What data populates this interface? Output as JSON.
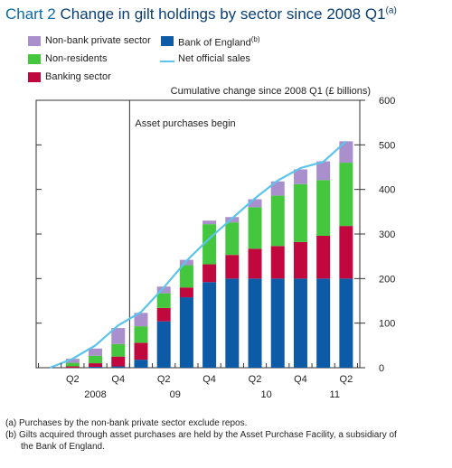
{
  "header": {
    "chart_number": "Chart 2",
    "title": "Change in gilt holdings by sector since 2008 Q1",
    "title_note": "(a)"
  },
  "legend": {
    "nonbank": "Non-bank private sector",
    "nonres": "Non-residents",
    "banking": "Banking sector",
    "boe": "Bank of England",
    "boe_note": "(b)",
    "sales": "Net official sales"
  },
  "colors": {
    "nonbank": "#a98fcc",
    "nonres": "#44c73f",
    "banking": "#c0083f",
    "boe": "#0d5aa7",
    "sales": "#5bc4ee",
    "title_number": "#0b6aa8",
    "title_text": "#0b3f73"
  },
  "chart_data": {
    "type": "bar",
    "stacked": true,
    "ylabel": "Cumulative change since 2008 Q1 (£ billions)",
    "ylim": [
      0,
      600
    ],
    "yticks": [
      0,
      100,
      200,
      300,
      400,
      500,
      600
    ],
    "grid": false,
    "periods": [
      "2008 Q1",
      "2008 Q2",
      "2008 Q3",
      "2008 Q4",
      "2009 Q1",
      "2009 Q2",
      "2009 Q3",
      "2009 Q4",
      "2010 Q1",
      "2010 Q2",
      "2010 Q3",
      "2010 Q4",
      "2011 Q1",
      "2011 Q2"
    ],
    "x_tick_labels": [
      "Q2",
      "Q4",
      "Q2",
      "Q4",
      "Q2",
      "Q4",
      "Q2"
    ],
    "x_tick_positions": [
      1,
      3,
      5,
      7,
      9,
      11,
      13
    ],
    "year_labels": [
      "2008",
      "09",
      "10",
      "11"
    ],
    "year_label_positions": [
      2,
      5.5,
      9.5,
      12.5
    ],
    "series": [
      {
        "name": "Bank of England",
        "values": [
          0,
          0,
          2,
          3,
          18,
          104,
          158,
          192,
          200,
          200,
          200,
          200,
          200,
          200
        ]
      },
      {
        "name": "Banking sector",
        "values": [
          0,
          3,
          8,
          22,
          38,
          30,
          22,
          40,
          53,
          67,
          73,
          82,
          96,
          118
        ]
      },
      {
        "name": "Non-residents",
        "values": [
          0,
          8,
          17,
          28,
          37,
          33,
          50,
          90,
          73,
          93,
          113,
          130,
          125,
          142
        ]
      },
      {
        "name": "Non-bank private sector",
        "values": [
          0,
          9,
          16,
          36,
          30,
          15,
          12,
          8,
          12,
          18,
          32,
          33,
          42,
          48
        ]
      }
    ],
    "line": {
      "name": "Net official sales",
      "values": [
        0,
        20,
        50,
        95,
        125,
        180,
        240,
        290,
        335,
        380,
        420,
        448,
        462,
        508
      ]
    },
    "annotation": {
      "text": "Asset purchases begin",
      "position": 3.5
    }
  },
  "footnotes": [
    "(a) Purchases by the non-bank private sector exclude repos.",
    "(b) Gilts acquired through asset purchases are held by the Asset Purchase Facility, a subsidiary of",
    "the Bank of England."
  ]
}
